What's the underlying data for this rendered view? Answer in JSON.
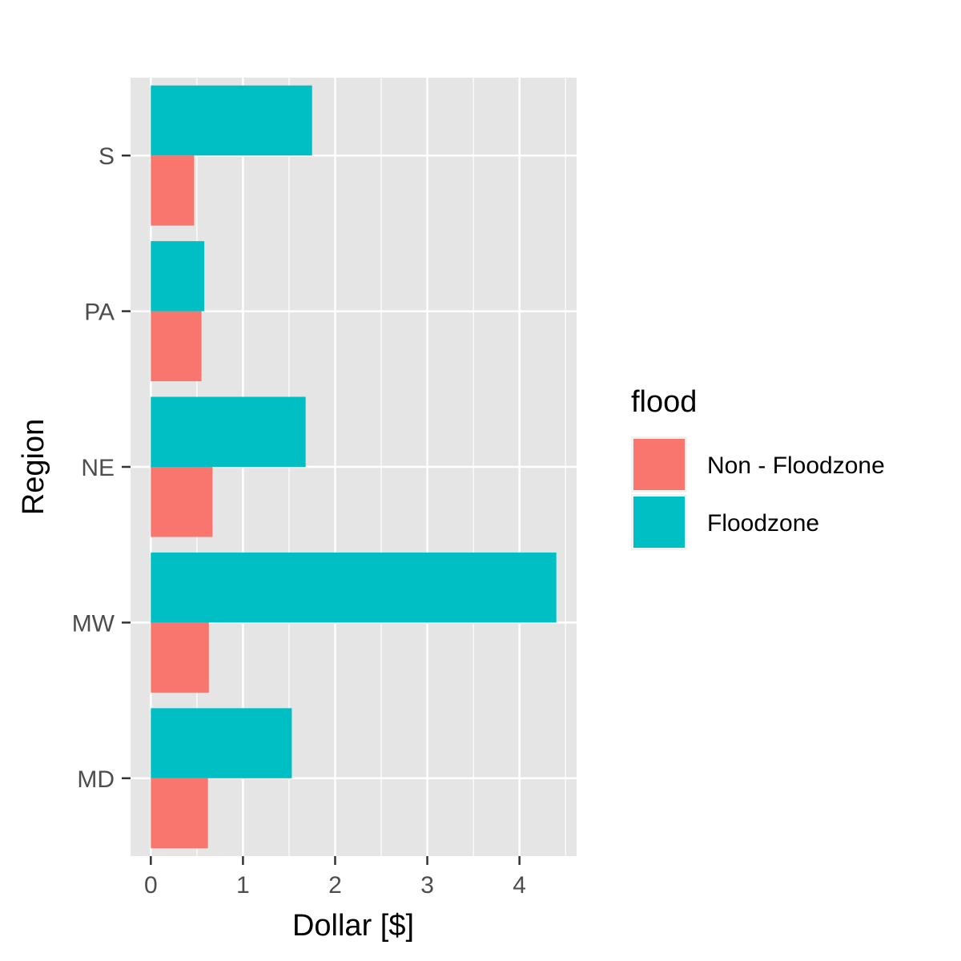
{
  "chart_data": {
    "type": "bar",
    "orientation": "horizontal",
    "categories": [
      "MD",
      "MW",
      "NE",
      "PA",
      "S"
    ],
    "series": [
      {
        "name": "Non - Floodzone",
        "color": "#F8766D",
        "values": [
          0.62,
          0.63,
          0.67,
          0.55,
          0.47
        ]
      },
      {
        "name": "Floodzone",
        "color": "#00BFC4",
        "values": [
          1.53,
          4.4,
          1.68,
          0.58,
          1.75
        ]
      }
    ],
    "xlabel": "Dollar [$]",
    "ylabel": "Region",
    "xlim": [
      -0.22,
      4.62
    ],
    "xticks": [
      "0",
      "1",
      "2",
      "3",
      "4"
    ],
    "grid": true,
    "legend": {
      "title": "flood",
      "placement": "right"
    }
  }
}
